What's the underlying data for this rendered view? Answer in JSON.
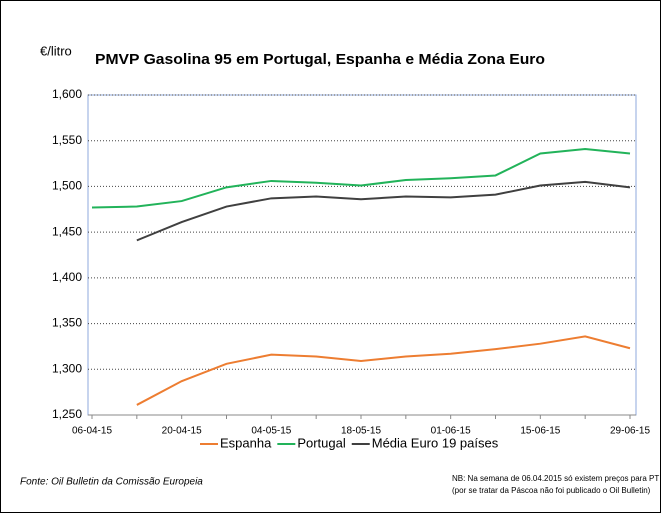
{
  "chart_data": {
    "type": "line",
    "title": "PMVP Gasolina 95 em Portugal, Espanha e Média Zona Euro",
    "y_label": "€/litro",
    "categories": [
      "06-04-15",
      null,
      "20-04-15",
      null,
      "04-05-15",
      null,
      "18-05-15",
      null,
      "01-06-15",
      null,
      "15-06-15",
      null,
      "29-06-15"
    ],
    "series": [
      {
        "name": "Espanha",
        "color": "#ed7d31",
        "values": [
          null,
          1.261,
          1.287,
          1.306,
          1.316,
          1.314,
          1.309,
          1.314,
          1.317,
          1.322,
          1.328,
          1.336,
          1.323
        ]
      },
      {
        "name": "Portugal",
        "color": "#22b35a",
        "values": [
          1.477,
          1.478,
          1.484,
          1.499,
          1.506,
          1.504,
          1.501,
          1.507,
          1.509,
          1.512,
          1.536,
          1.541,
          1.536
        ]
      },
      {
        "name": "Média Euro 19 países",
        "color": "#404040",
        "values": [
          null,
          1.441,
          1.461,
          1.478,
          1.487,
          1.489,
          1.486,
          1.489,
          1.488,
          1.491,
          1.501,
          1.505,
          1.499
        ]
      }
    ],
    "ylim": [
      1.25,
      1.6
    ],
    "yticks": [
      {
        "value": 1.25,
        "label": "1,250"
      },
      {
        "value": 1.3,
        "label": "1,300"
      },
      {
        "value": 1.35,
        "label": "1,350"
      },
      {
        "value": 1.4,
        "label": "1,400"
      },
      {
        "value": 1.45,
        "label": "1,450"
      },
      {
        "value": 1.5,
        "label": "1,500"
      },
      {
        "value": 1.55,
        "label": "1,550"
      },
      {
        "value": 1.6,
        "label": "1,600"
      }
    ],
    "grid": true,
    "legend": "bottom",
    "source": "Fonte: Oil Bulletin  da Comissão Europeia",
    "notes": [
      "NB: Na semana de 06.04.2015 só existem preços  para PT",
      "(por se tratar da Páscoa não foi publicado o Oil Bulletin)"
    ]
  }
}
